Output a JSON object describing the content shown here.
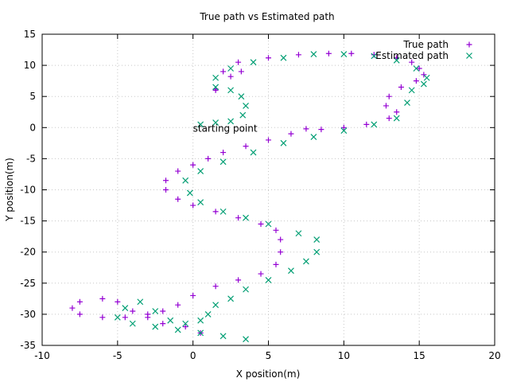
{
  "chart_data": {
    "type": "scatter",
    "title": "True path vs Estimated path",
    "xlabel": "X position(m)",
    "ylabel": "Y position(m)",
    "xlim": [
      -10,
      20
    ],
    "ylim": [
      -35,
      15
    ],
    "xticks": [
      -10,
      -5,
      0,
      5,
      10,
      15,
      20
    ],
    "yticks": [
      15,
      10,
      5,
      0,
      -5,
      -10,
      -15,
      -20,
      -25,
      -30,
      -35
    ],
    "grid": true,
    "legend_position": "top-right",
    "annotations": [
      {
        "text": "starting point",
        "x": 0,
        "y": 0
      }
    ],
    "series": [
      {
        "name": "True path",
        "marker": "plus",
        "color": "#9400d3",
        "points": [
          [
            3.2,
            9.0
          ],
          [
            2.5,
            8.2
          ],
          [
            1.5,
            6.2
          ],
          [
            1.5,
            6.0
          ],
          [
            2.0,
            9.0
          ],
          [
            3.0,
            10.5
          ],
          [
            5.0,
            11.2
          ],
          [
            7.0,
            11.7
          ],
          [
            9.0,
            11.9
          ],
          [
            10.5,
            11.9
          ],
          [
            12.0,
            11.7
          ],
          [
            13.5,
            11.2
          ],
          [
            14.5,
            10.5
          ],
          [
            15.0,
            9.5
          ],
          [
            15.3,
            8.5
          ],
          [
            14.8,
            7.5
          ],
          [
            13.8,
            6.5
          ],
          [
            13.0,
            5.0
          ],
          [
            12.8,
            3.5
          ],
          [
            13.5,
            2.5
          ],
          [
            13.0,
            1.5
          ],
          [
            11.5,
            0.5
          ],
          [
            10.0,
            0.0
          ],
          [
            8.5,
            -0.3
          ],
          [
            7.5,
            -0.2
          ],
          [
            6.5,
            -1.0
          ],
          [
            5.0,
            -2.0
          ],
          [
            3.5,
            -3.0
          ],
          [
            2.0,
            -4.0
          ],
          [
            1.0,
            -5.0
          ],
          [
            0.0,
            -6.0
          ],
          [
            -1.0,
            -7.0
          ],
          [
            -1.8,
            -8.5
          ],
          [
            -1.8,
            -10.0
          ],
          [
            -1.0,
            -11.5
          ],
          [
            0.0,
            -12.5
          ],
          [
            1.5,
            -13.5
          ],
          [
            3.0,
            -14.5
          ],
          [
            4.5,
            -15.5
          ],
          [
            5.5,
            -16.5
          ],
          [
            5.8,
            -18.0
          ],
          [
            5.8,
            -20.0
          ],
          [
            5.5,
            -22.0
          ],
          [
            4.5,
            -23.5
          ],
          [
            3.0,
            -24.5
          ],
          [
            1.5,
            -25.5
          ],
          [
            0.0,
            -27.0
          ],
          [
            -1.0,
            -28.5
          ],
          [
            -2.0,
            -29.5
          ],
          [
            -3.0,
            -30.0
          ],
          [
            -4.5,
            -30.5
          ],
          [
            -6.0,
            -30.5
          ],
          [
            -7.5,
            -30.0
          ],
          [
            -8.0,
            -29.0
          ],
          [
            -7.5,
            -28.0
          ],
          [
            -6.0,
            -27.5
          ],
          [
            -5.0,
            -28.0
          ],
          [
            -4.0,
            -29.5
          ],
          [
            -3.0,
            -30.5
          ],
          [
            -2.0,
            -31.5
          ],
          [
            -0.5,
            -32.0
          ],
          [
            0.5,
            -33.0
          ]
        ]
      },
      {
        "name": "Estimated path",
        "marker": "cross",
        "color": "#009e73",
        "points": [
          [
            0.5,
            0.5
          ],
          [
            1.5,
            0.8
          ],
          [
            2.5,
            1.0
          ],
          [
            3.3,
            2.0
          ],
          [
            3.5,
            3.5
          ],
          [
            3.2,
            5.0
          ],
          [
            2.5,
            6.0
          ],
          [
            1.5,
            6.5
          ],
          [
            1.5,
            8.0
          ],
          [
            2.5,
            9.5
          ],
          [
            4.0,
            10.5
          ],
          [
            6.0,
            11.2
          ],
          [
            8.0,
            11.8
          ],
          [
            10.0,
            11.8
          ],
          [
            12.0,
            11.5
          ],
          [
            13.5,
            10.8
          ],
          [
            14.8,
            9.5
          ],
          [
            15.5,
            8.0
          ],
          [
            15.3,
            7.0
          ],
          [
            14.5,
            6.0
          ],
          [
            14.2,
            4.0
          ],
          [
            13.5,
            1.5
          ],
          [
            12.0,
            0.5
          ],
          [
            10.0,
            -0.5
          ],
          [
            8.0,
            -1.5
          ],
          [
            6.0,
            -2.5
          ],
          [
            4.0,
            -4.0
          ],
          [
            2.0,
            -5.5
          ],
          [
            0.5,
            -7.0
          ],
          [
            -0.5,
            -8.5
          ],
          [
            -0.2,
            -10.5
          ],
          [
            0.5,
            -12.0
          ],
          [
            2.0,
            -13.5
          ],
          [
            3.5,
            -14.5
          ],
          [
            5.0,
            -15.5
          ],
          [
            7.0,
            -17.0
          ],
          [
            8.2,
            -18.0
          ],
          [
            8.2,
            -20.0
          ],
          [
            7.5,
            -21.5
          ],
          [
            6.5,
            -23.0
          ],
          [
            5.0,
            -24.5
          ],
          [
            3.5,
            -26.0
          ],
          [
            2.5,
            -27.5
          ],
          [
            1.5,
            -28.5
          ],
          [
            1.0,
            -30.0
          ],
          [
            0.5,
            -31.0
          ],
          [
            -0.5,
            -31.5
          ],
          [
            -1.5,
            -31.0
          ],
          [
            -2.5,
            -29.5
          ],
          [
            -3.5,
            -28.0
          ],
          [
            -4.5,
            -29.0
          ],
          [
            -5.0,
            -30.5
          ],
          [
            -4.0,
            -31.5
          ],
          [
            -2.5,
            -32.0
          ],
          [
            -1.0,
            -32.5
          ],
          [
            0.5,
            -33.0
          ],
          [
            2.0,
            -33.5
          ],
          [
            3.5,
            -34.0
          ]
        ]
      }
    ]
  }
}
